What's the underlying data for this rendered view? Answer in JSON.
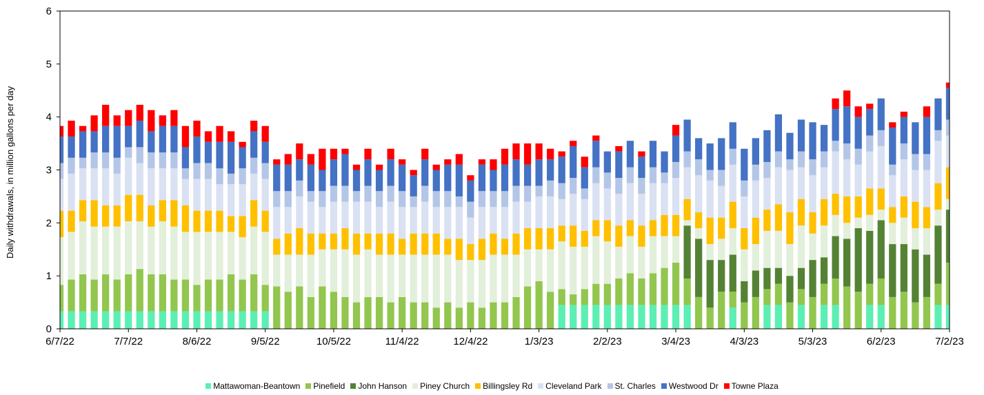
{
  "chart_data": {
    "type": "stacked_bar",
    "y_label": "Daily withdrawals, in million gallons per day",
    "x": [
      "6/7/22",
      "6/12/22",
      "6/17/22",
      "6/22/22",
      "6/27/22",
      "7/2/22",
      "7/7/22",
      "7/12/22",
      "7/17/22",
      "7/22/22",
      "7/27/22",
      "8/1/22",
      "8/6/22",
      "8/11/22",
      "8/16/22",
      "8/21/22",
      "8/26/22",
      "8/31/22",
      "9/5/22",
      "9/10/22",
      "9/15/22",
      "9/20/22",
      "9/25/22",
      "9/30/22",
      "10/5/22",
      "10/10/22",
      "10/15/22",
      "10/20/22",
      "10/25/22",
      "10/30/22",
      "11/4/22",
      "11/9/22",
      "11/14/22",
      "11/19/22",
      "11/24/22",
      "11/29/22",
      "12/4/22",
      "12/9/22",
      "12/14/22",
      "12/19/22",
      "12/24/22",
      "12/29/22",
      "1/3/23",
      "1/8/23",
      "1/13/23",
      "1/18/23",
      "1/23/23",
      "1/28/23",
      "2/2/23",
      "2/7/23",
      "2/12/23",
      "2/17/23",
      "2/22/23",
      "2/27/23",
      "3/4/23",
      "3/9/23",
      "3/14/23",
      "3/19/23",
      "3/24/23",
      "3/29/23",
      "4/3/23",
      "4/8/23",
      "4/13/23",
      "4/18/23",
      "4/23/23",
      "4/28/23",
      "5/3/23",
      "5/8/23",
      "5/13/23",
      "5/18/23",
      "5/23/23",
      "5/28/23",
      "6/2/23",
      "6/7/23",
      "6/12/23",
      "6/17/23",
      "6/22/23",
      "6/27/23",
      "7/2/23"
    ],
    "xlim": [
      "6/7/22",
      "7/2/23"
    ],
    "xticks": [
      "6/7/22",
      "7/7/22",
      "8/6/22",
      "9/5/22",
      "10/5/22",
      "11/4/22",
      "12/4/22",
      "1/3/23",
      "2/2/23",
      "3/4/23",
      "4/3/23",
      "5/3/23",
      "6/2/23",
      "7/2/23"
    ],
    "ylim": [
      0,
      6
    ],
    "yticks": [
      0,
      1,
      2,
      3,
      4,
      5,
      6
    ],
    "grid": false,
    "legend": "bottom",
    "series": [
      {
        "name": "Mattawoman-Beantown",
        "color": "#5cefb4",
        "values": [
          0.33,
          0.33,
          0.33,
          0.33,
          0.33,
          0.33,
          0.33,
          0.33,
          0.33,
          0.33,
          0.33,
          0.33,
          0.33,
          0.33,
          0.33,
          0.33,
          0.33,
          0.33,
          0.33,
          0,
          0,
          0,
          0,
          0,
          0,
          0,
          0,
          0,
          0,
          0,
          0,
          0,
          0,
          0,
          0,
          0,
          0,
          0,
          0,
          0,
          0,
          0,
          0,
          0,
          0.45,
          0.45,
          0.45,
          0.45,
          0.45,
          0.45,
          0.45,
          0.45,
          0.45,
          0.45,
          0.45,
          0.45,
          0,
          0,
          0,
          0.4,
          0,
          0,
          0.45,
          0.45,
          0,
          0.45,
          0,
          0.45,
          0.45,
          0,
          0,
          0.45,
          0.45,
          0,
          0,
          0,
          0,
          0.45,
          0.45
        ]
      },
      {
        "name": "Pinefield",
        "color": "#92c64e",
        "values": [
          0.5,
          0.6,
          0.7,
          0.6,
          0.7,
          0.6,
          0.7,
          0.8,
          0.7,
          0.7,
          0.6,
          0.6,
          0.5,
          0.6,
          0.6,
          0.7,
          0.6,
          0.7,
          0.5,
          0.8,
          0.7,
          0.8,
          0.6,
          0.8,
          0.7,
          0.6,
          0.5,
          0.6,
          0.6,
          0.5,
          0.6,
          0.5,
          0.5,
          0.4,
          0.5,
          0.4,
          0.5,
          0.4,
          0.5,
          0.5,
          0.6,
          0.8,
          0.9,
          0.7,
          0.3,
          0.2,
          0.3,
          0.4,
          0.4,
          0.5,
          0.6,
          0.5,
          0.6,
          0.7,
          0.8,
          0.5,
          0.6,
          0.4,
          0.7,
          0.3,
          0.5,
          0.6,
          0.3,
          0.4,
          0.5,
          0.3,
          0.6,
          0.4,
          0.5,
          0.8,
          0.7,
          0.4,
          0.5,
          0.6,
          0.7,
          0.5,
          0.6,
          0.4,
          0.8
        ]
      },
      {
        "name": "John Hanson",
        "color": "#548235",
        "values": [
          0,
          0,
          0,
          0,
          0,
          0,
          0,
          0,
          0,
          0,
          0,
          0,
          0,
          0,
          0,
          0,
          0,
          0,
          0,
          0,
          0,
          0,
          0,
          0,
          0,
          0,
          0,
          0,
          0,
          0,
          0,
          0,
          0,
          0,
          0,
          0,
          0,
          0,
          0,
          0,
          0,
          0,
          0,
          0,
          0,
          0,
          0,
          0,
          0,
          0,
          0,
          0,
          0,
          0,
          0,
          1.0,
          1.1,
          0.9,
          0.6,
          0.7,
          0.4,
          0.5,
          0.4,
          0.3,
          0.5,
          0.4,
          0.7,
          0.5,
          0.8,
          0.9,
          1.2,
          1.0,
          1.1,
          1.0,
          0.9,
          1.0,
          0.8,
          1.1,
          1.0
        ]
      },
      {
        "name": "Piney Church",
        "color": "#e2efda",
        "values": [
          0.9,
          0.9,
          1.0,
          1.0,
          0.9,
          1.0,
          1.0,
          0.9,
          0.9,
          1.0,
          1.0,
          0.9,
          1.0,
          0.9,
          0.9,
          0.8,
          0.8,
          0.9,
          1.0,
          0.6,
          0.7,
          0.6,
          0.8,
          0.7,
          0.8,
          0.9,
          0.9,
          0.9,
          0.8,
          0.9,
          0.8,
          0.9,
          0.9,
          1.0,
          0.9,
          0.9,
          0.8,
          0.9,
          0.9,
          0.9,
          0.8,
          0.7,
          0.6,
          0.8,
          0.9,
          0.9,
          0.8,
          0.9,
          0.8,
          0.6,
          0.7,
          0.6,
          0.7,
          0.6,
          0.5,
          0.1,
          0.2,
          0.3,
          0.4,
          0.5,
          0.6,
          0.5,
          0.7,
          0.7,
          0.6,
          0.8,
          0.5,
          0.6,
          0.4,
          0.3,
          0.2,
          0.3,
          0.2,
          0.4,
          0.5,
          0.4,
          0.5,
          0.3,
          0.2
        ]
      },
      {
        "name": "Billingsley Rd",
        "color": "#ffc000",
        "values": [
          0.5,
          0.4,
          0.4,
          0.5,
          0.4,
          0.4,
          0.5,
          0.5,
          0.4,
          0.4,
          0.5,
          0.5,
          0.4,
          0.4,
          0.4,
          0.3,
          0.4,
          0.5,
          0.4,
          0.3,
          0.4,
          0.5,
          0.4,
          0.3,
          0.3,
          0.4,
          0.4,
          0.3,
          0.4,
          0.4,
          0.3,
          0.4,
          0.4,
          0.4,
          0.3,
          0.4,
          0.3,
          0.4,
          0.4,
          0.3,
          0.4,
          0.4,
          0.4,
          0.4,
          0.3,
          0.4,
          0.3,
          0.3,
          0.4,
          0.4,
          0.3,
          0.4,
          0.3,
          0.4,
          0.4,
          0.4,
          0.3,
          0.5,
          0.4,
          0.5,
          0.4,
          0.5,
          0.4,
          0.5,
          0.6,
          0.5,
          0.4,
          0.5,
          0.4,
          0.5,
          0.4,
          0.5,
          0.4,
          0.3,
          0.4,
          0.5,
          0.4,
          0.5,
          0.6
        ]
      },
      {
        "name": "Cleveland Park",
        "color": "#d9e1f2",
        "values": [
          0.6,
          0.7,
          0.6,
          0.6,
          0.7,
          0.6,
          0.7,
          0.6,
          0.7,
          0.6,
          0.6,
          0.5,
          0.6,
          0.6,
          0.5,
          0.6,
          0.6,
          0.5,
          0.6,
          0.6,
          0.5,
          0.6,
          0.6,
          0.5,
          0.6,
          0.5,
          0.6,
          0.6,
          0.5,
          0.6,
          0.6,
          0.5,
          0.6,
          0.5,
          0.6,
          0.6,
          0.5,
          0.6,
          0.5,
          0.6,
          0.6,
          0.5,
          0.6,
          0.6,
          0.5,
          0.6,
          0.6,
          0.7,
          0.6,
          0.6,
          0.7,
          0.6,
          0.7,
          0.6,
          0.7,
          0.6,
          0.7,
          0.7,
          0.6,
          0.7,
          0.6,
          0.7,
          0.6,
          0.7,
          0.8,
          0.6,
          0.7,
          0.6,
          0.8,
          0.7,
          0.6,
          0.7,
          0.8,
          0.6,
          0.7,
          0.6,
          0.7,
          0.8,
          0.6
        ]
      },
      {
        "name": "St. Charles",
        "color": "#b4c6e7",
        "values": [
          0.3,
          0.3,
          0.2,
          0.3,
          0.3,
          0.3,
          0.2,
          0.3,
          0.3,
          0.3,
          0.3,
          0.2,
          0.3,
          0.3,
          0.3,
          0.2,
          0.3,
          0.3,
          0.3,
          0.3,
          0.3,
          0.3,
          0.2,
          0.3,
          0.3,
          0.3,
          0.2,
          0.3,
          0.3,
          0.3,
          0.3,
          0.2,
          0.3,
          0.3,
          0.3,
          0.2,
          0.3,
          0.3,
          0.3,
          0.3,
          0.3,
          0.3,
          0.2,
          0.3,
          0.3,
          0.3,
          0.2,
          0.3,
          0.3,
          0.3,
          0.3,
          0.3,
          0.3,
          0.2,
          0.3,
          0.3,
          0.3,
          0.2,
          0.3,
          0.3,
          0.3,
          0.3,
          0.3,
          0.3,
          0.2,
          0.3,
          0.3,
          0.3,
          0.2,
          0.3,
          0.3,
          0.3,
          0.3,
          0.2,
          0.3,
          0.3,
          0.3,
          0.2,
          0.3
        ]
      },
      {
        "name": "Westwood Dr",
        "color": "#4472c4",
        "values": [
          0.5,
          0.4,
          0.5,
          0.4,
          0.5,
          0.6,
          0.4,
          0.5,
          0.4,
          0.5,
          0.5,
          0.4,
          0.5,
          0.4,
          0.5,
          0.6,
          0.4,
          0.5,
          0.4,
          0.5,
          0.5,
          0.4,
          0.5,
          0.4,
          0.5,
          0.6,
          0.4,
          0.5,
          0.4,
          0.5,
          0.5,
          0.4,
          0.5,
          0.4,
          0.5,
          0.6,
          0.4,
          0.5,
          0.4,
          0.5,
          0.5,
          0.4,
          0.5,
          0.4,
          0.5,
          0.6,
          0.4,
          0.5,
          0.4,
          0.5,
          0.5,
          0.4,
          0.5,
          0.4,
          0.5,
          0.6,
          0.4,
          0.5,
          0.6,
          0.5,
          0.6,
          0.5,
          0.6,
          0.7,
          0.5,
          0.6,
          0.7,
          0.5,
          0.6,
          0.7,
          0.6,
          0.5,
          0.6,
          0.7,
          0.5,
          0.6,
          0.7,
          0.6,
          0.6
        ]
      },
      {
        "name": "Towne Plaza",
        "color": "#ff0000",
        "values": [
          0.2,
          0.3,
          0.1,
          0.3,
          0.4,
          0.2,
          0.3,
          0.3,
          0.4,
          0.2,
          0.3,
          0.4,
          0.3,
          0.2,
          0.3,
          0.2,
          0.1,
          0.2,
          0.3,
          0.1,
          0.2,
          0.3,
          0.2,
          0.4,
          0.2,
          0.1,
          0.1,
          0.2,
          0.1,
          0.2,
          0.1,
          0.1,
          0.2,
          0.1,
          0.1,
          0.2,
          0.1,
          0.1,
          0.2,
          0.3,
          0.3,
          0.4,
          0.3,
          0.2,
          0.1,
          0.1,
          0.2,
          0.1,
          0,
          0.1,
          0,
          0.1,
          0,
          0,
          0.2,
          0,
          0,
          0,
          0,
          0,
          0,
          0,
          0,
          0,
          0,
          0,
          0,
          0,
          0.2,
          0.3,
          0.2,
          0.1,
          0,
          0.1,
          0.1,
          0,
          0.2,
          0,
          0.1
        ]
      }
    ]
  }
}
